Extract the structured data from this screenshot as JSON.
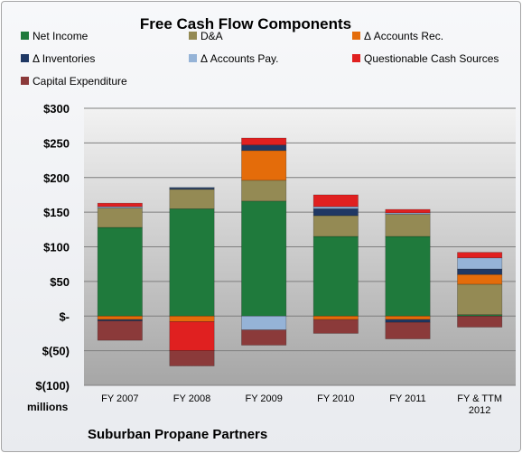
{
  "chart_data": {
    "type": "bar",
    "stacked": true,
    "title": "Free Cash Flow Components",
    "subtitle": "Suburban Propane Partners",
    "ylabel": "millions",
    "ylim": [
      -100,
      300
    ],
    "yticks": [
      300,
      250,
      200,
      150,
      100,
      50,
      0,
      -50,
      -100
    ],
    "ytick_labels": [
      "$300",
      "$250",
      "$200",
      "$150",
      "$100",
      "$50",
      "$-",
      "$(50)",
      "$(100)"
    ],
    "categories": [
      "FY 2007",
      "FY 2008",
      "FY 2009",
      "FY 2010",
      "FY 2011",
      "FY & TTM 2012"
    ],
    "category_labels": [
      [
        "FY 2007"
      ],
      [
        "FY 2008"
      ],
      [
        "FY 2009"
      ],
      [
        "FY 2010"
      ],
      [
        "FY 2011"
      ],
      [
        "FY & TTM",
        "2012"
      ]
    ],
    "grid": true,
    "legend_position": "top",
    "series": [
      {
        "name": "Net Income",
        "color": "#1f7a3c",
        "values": [
          128,
          155,
          166,
          115,
          115,
          2
        ]
      },
      {
        "name": "D&A",
        "color": "#948a54",
        "values": [
          28,
          28,
          30,
          30,
          32,
          44
        ]
      },
      {
        "name": "Δ Accounts Rec.",
        "color": "#e46c0a",
        "values": [
          -5,
          -8,
          43,
          -5,
          -5,
          14
        ]
      },
      {
        "name": "Δ Inventories",
        "color": "#1f3864",
        "values": [
          -2,
          2,
          8,
          10,
          -4,
          8
        ]
      },
      {
        "name": "Δ Accounts Pay.",
        "color": "#95b3d7",
        "values": [
          2,
          1,
          -20,
          3,
          2,
          16
        ]
      },
      {
        "name": "Questionable Cash Sources",
        "color": "#e02020",
        "values": [
          5,
          -42,
          10,
          17,
          5,
          8
        ]
      },
      {
        "name": "Capital Expenditure",
        "color": "#8b3a3a",
        "values": [
          -28,
          -22,
          -22,
          -20,
          -24,
          -16
        ]
      }
    ]
  }
}
